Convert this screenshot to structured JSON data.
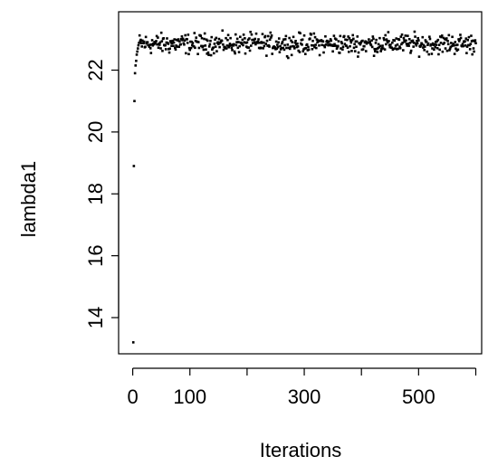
{
  "chart_data": {
    "type": "scatter",
    "title": "",
    "xlabel": "Iterations",
    "ylabel": "lambda1",
    "xlim": [
      -10,
      610
    ],
    "ylim": [
      12.9,
      23.7
    ],
    "x_ticks": [
      0,
      100,
      200,
      300,
      400,
      500,
      600
    ],
    "x_tick_labels": [
      "0",
      "100",
      "300",
      "500"
    ],
    "x_tick_label_values": [
      0,
      100,
      300,
      500
    ],
    "y_ticks": [
      14,
      16,
      18,
      20,
      22
    ],
    "y_tick_labels": [
      "14",
      "16",
      "18",
      "20",
      "22"
    ],
    "grid": false,
    "legend": "none",
    "marker_color": "#000000",
    "series": [
      {
        "x": [
          1,
          2,
          3,
          4,
          5,
          6,
          7,
          8,
          9,
          10
        ],
        "y": [
          13.2,
          18.9,
          21.0,
          21.9,
          22.15,
          22.3,
          22.5,
          22.6,
          22.7,
          22.8
        ]
      }
    ],
    "trace_summary": {
      "x_start": 11,
      "x_end": 600,
      "mean": 22.85,
      "sd": 0.2,
      "min": 22.35,
      "max": 23.45
    }
  }
}
